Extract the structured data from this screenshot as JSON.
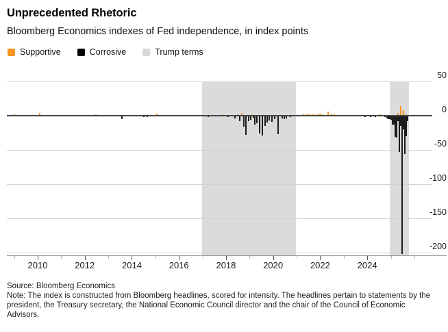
{
  "header": {
    "title": "Unprecedented Rhetoric",
    "subtitle": "Bloomberg Economics indexes of Fed independence, in index points"
  },
  "legend": {
    "items": [
      {
        "label": "Supportive",
        "color": "#F7941E"
      },
      {
        "label": "Corrosive",
        "color": "#000000"
      },
      {
        "label": "Trump terms",
        "color": "#D9D9D9"
      }
    ]
  },
  "footer": {
    "source": "Source: Bloomberg Economics",
    "note": "Note: The index is constructed from Bloomberg headlines, scored for intensity. The headlines pertain to statements by the president, the Treasury secretary, the National Economic Council director and the chair of the Council of Economic Advisors."
  },
  "chart_data": {
    "type": "bar",
    "title": "Unprecedented Rhetoric",
    "subtitle": "Bloomberg Economics indexes of Fed independence, in index points",
    "ylabel": "index points",
    "y_axis": {
      "range": [
        -204,
        69
      ],
      "ticks": [
        50,
        0,
        -50,
        -100,
        -150,
        -200
      ],
      "label_side": "right",
      "grid": true
    },
    "x_axis": {
      "range": [
        2008.69,
        2026.76
      ],
      "tick_years": [
        2009,
        2010,
        2011,
        2012,
        2013,
        2014,
        2015,
        2016,
        2017,
        2018,
        2019,
        2020,
        2021,
        2022,
        2023,
        2024,
        2025,
        2026
      ],
      "label_years": [
        2010,
        2012,
        2014,
        2016,
        2018,
        2020,
        2022,
        2024
      ]
    },
    "bands": [
      {
        "from": 2016.97,
        "to": 2020.96
      },
      {
        "from": 2024.95,
        "to": 2025.76
      }
    ],
    "colors": {
      "band": "#DBDBDB",
      "grid": "#D2D2D2",
      "zero_line": "#454545",
      "axis_line": "#9A9A9A",
      "major_tick": "#555555",
      "minor_tick": "#B5B5B5"
    },
    "series": [
      {
        "name": "Supportive",
        "color": "#F79420",
        "points": [
          [
            2009.0,
            2
          ],
          [
            2010.08,
            4
          ],
          [
            2010.2,
            1
          ],
          [
            2012.47,
            2
          ],
          [
            2015.06,
            3
          ],
          [
            2015.74,
            1
          ],
          [
            2015.85,
            1
          ],
          [
            2017.85,
            2
          ],
          [
            2018.5,
            2
          ],
          [
            2018.67,
            4
          ],
          [
            2019.12,
            2
          ],
          [
            2021.29,
            2
          ],
          [
            2021.4,
            2
          ],
          [
            2021.5,
            2
          ],
          [
            2021.58,
            2
          ],
          [
            2021.7,
            2
          ],
          [
            2021.87,
            2
          ],
          [
            2021.99,
            3
          ],
          [
            2022.08,
            2
          ],
          [
            2022.34,
            6
          ],
          [
            2022.48,
            3
          ],
          [
            2022.6,
            2
          ],
          [
            2024.55,
            2
          ],
          [
            2025.31,
            4
          ],
          [
            2025.42,
            14
          ],
          [
            2025.54,
            8
          ],
          [
            2025.6,
            2
          ]
        ]
      },
      {
        "name": "Corrosive",
        "color": "#1C1C1C",
        "points": [
          [
            2009.65,
            -1
          ],
          [
            2009.77,
            -1
          ],
          [
            2009.88,
            -1
          ],
          [
            2013.58,
            -5
          ],
          [
            2014.5,
            -2
          ],
          [
            2014.65,
            -2
          ],
          [
            2016.0,
            -1
          ],
          [
            2017.13,
            -1
          ],
          [
            2017.25,
            -2
          ],
          [
            2017.57,
            -1
          ],
          [
            2018.1,
            -2
          ],
          [
            2018.38,
            -4
          ],
          [
            2018.59,
            -8
          ],
          [
            2018.76,
            -16
          ],
          [
            2018.85,
            -28
          ],
          [
            2018.96,
            -8
          ],
          [
            2019.05,
            -6
          ],
          [
            2019.17,
            -3
          ],
          [
            2019.22,
            -13
          ],
          [
            2019.31,
            -11
          ],
          [
            2019.43,
            -26
          ],
          [
            2019.55,
            -29
          ],
          [
            2019.66,
            -15
          ],
          [
            2019.75,
            -10
          ],
          [
            2019.83,
            -7
          ],
          [
            2019.95,
            -9
          ],
          [
            2020.07,
            -5
          ],
          [
            2020.21,
            -27
          ],
          [
            2020.39,
            -4
          ],
          [
            2020.48,
            -5
          ],
          [
            2020.56,
            -4
          ],
          [
            2020.73,
            -2
          ],
          [
            2023.91,
            -2
          ],
          [
            2024.14,
            -2
          ],
          [
            2024.35,
            -2
          ],
          [
            2024.75,
            -2
          ],
          [
            2024.84,
            -4
          ],
          [
            2024.9,
            -5
          ],
          [
            2024.96,
            -5
          ],
          [
            2025.02,
            -6
          ],
          [
            2025.08,
            -13
          ],
          [
            2025.13,
            -13
          ],
          [
            2025.19,
            -31
          ],
          [
            2025.25,
            -32
          ],
          [
            2025.31,
            -8
          ],
          [
            2025.37,
            -53
          ],
          [
            2025.42,
            -15
          ],
          [
            2025.48,
            -202
          ],
          [
            2025.54,
            -20
          ],
          [
            2025.6,
            -56
          ],
          [
            2025.66,
            -30
          ],
          [
            2025.72,
            -8
          ]
        ]
      }
    ]
  }
}
